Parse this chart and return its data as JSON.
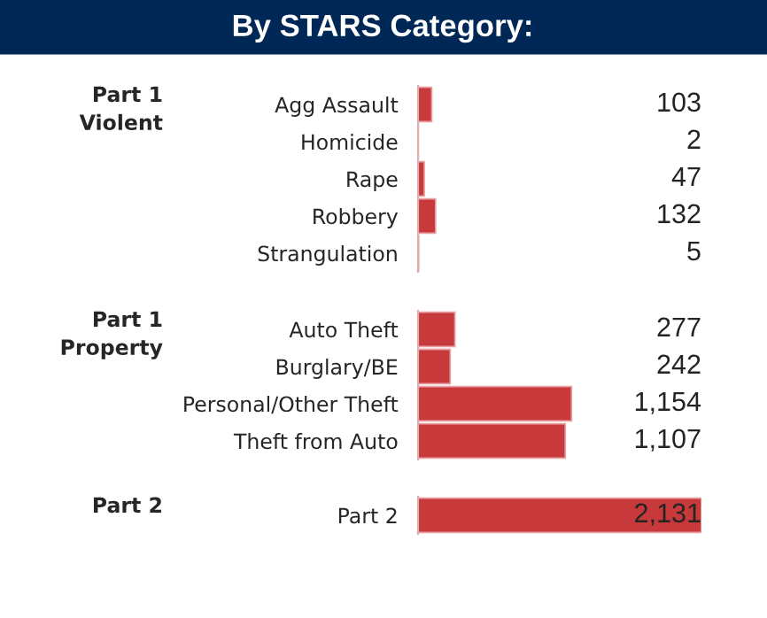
{
  "chart_data": [
    {
      "type": "bar",
      "orientation": "horizontal",
      "title": "By STARS Category:",
      "ylabel": "Part 1\nViolent",
      "categories": [
        "Agg Assault",
        "Homicide",
        "Rape",
        "Robbery",
        "Strangulation"
      ],
      "values": [
        103,
        2,
        47,
        132,
        5
      ],
      "value_labels": [
        "103",
        "2",
        "47",
        "132",
        "5"
      ],
      "color": "#c8393c",
      "tick_labels": "y"
    },
    {
      "type": "bar",
      "orientation": "horizontal",
      "ylabel": "Part 1\nProperty",
      "categories": [
        "Auto Theft",
        "Burglary/BE",
        "Personal/Other Theft",
        "Theft from Auto"
      ],
      "values": [
        277,
        242,
        1154,
        1107
      ],
      "value_labels": [
        "277",
        "242",
        "1,154",
        "1,107"
      ],
      "color": "#c8393c",
      "tick_labels": "y"
    },
    {
      "type": "bar",
      "orientation": "horizontal",
      "ylabel": "Part 2",
      "categories": [
        "Part 2"
      ],
      "values": [
        2131
      ],
      "value_labels": [
        "2,131"
      ],
      "color": "#c8393c",
      "tick_labels": "y"
    }
  ]
}
